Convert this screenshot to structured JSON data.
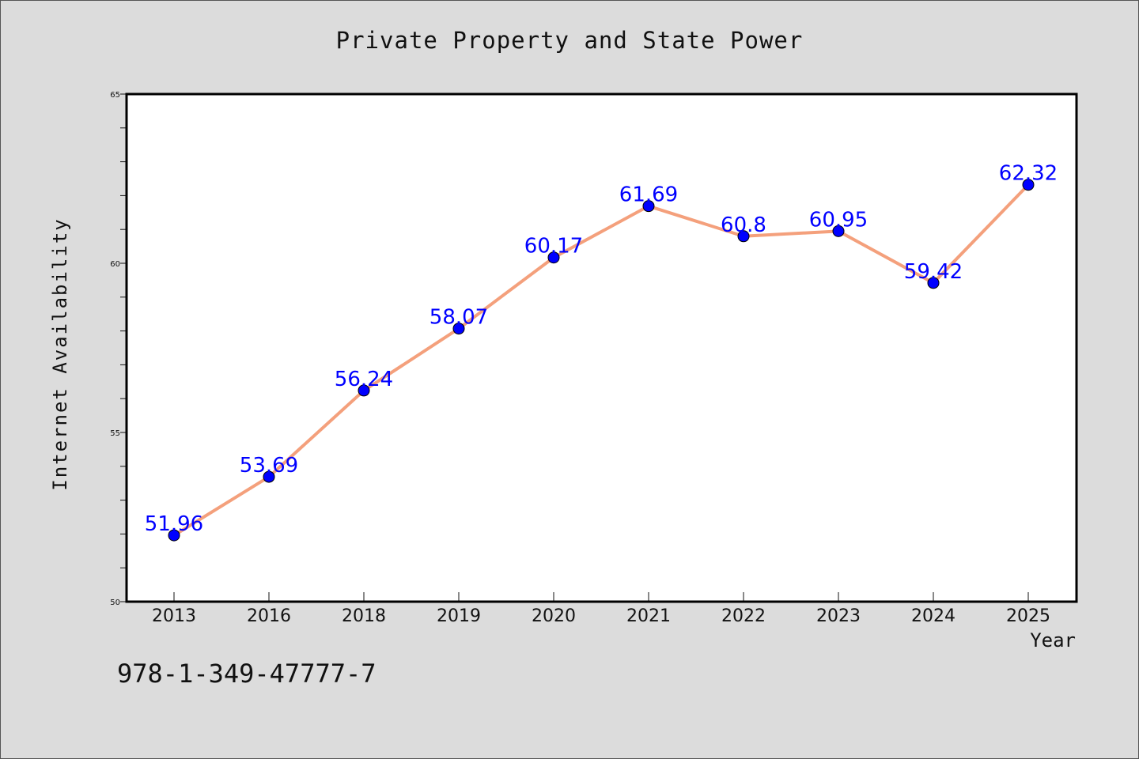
{
  "chart_data": {
    "type": "line",
    "title": "Private Property and State Power",
    "xlabel": "Year",
    "ylabel": "Internet Availability",
    "categories": [
      "2013",
      "2016",
      "2018",
      "2019",
      "2020",
      "2021",
      "2022",
      "2023",
      "2024",
      "2025"
    ],
    "series": [
      {
        "values": [
          51.96,
          53.69,
          56.24,
          58.07,
          60.17,
          61.69,
          60.8,
          60.95,
          59.42,
          62.32
        ],
        "line_color": "#f4a07c",
        "marker_color": "#0000ff",
        "label_color": "#0000ff"
      }
    ],
    "data_labels": [
      "51.96",
      "53.69",
      "56.24",
      "58.07",
      "60.17",
      "61.69",
      "60.8",
      "60.95",
      "59.42",
      "62.32"
    ],
    "ylim": [
      50,
      65
    ],
    "yticks": [
      50,
      55,
      60,
      65
    ],
    "ytick_labels": [
      "50",
      "55",
      "60",
      "65"
    ],
    "grid": false,
    "legend": "none"
  },
  "footer": {
    "isbn": "978-1-349-47777-7"
  },
  "colors": {
    "background": "#dcdcdc",
    "plot_area": "#ffffff"
  }
}
